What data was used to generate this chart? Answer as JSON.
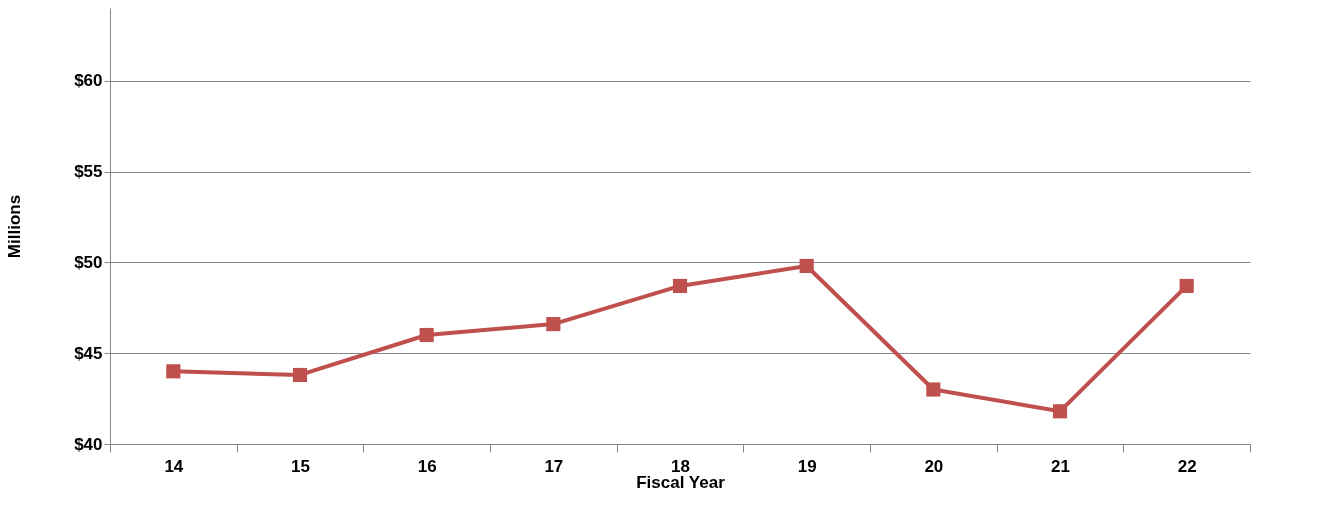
{
  "chart_data": {
    "type": "line",
    "xlabel": "Fiscal Year",
    "ylabel": "Millions",
    "categories": [
      "14",
      "15",
      "16",
      "17",
      "18",
      "19",
      "20",
      "21",
      "22"
    ],
    "series": [
      {
        "color": "#c0504d",
        "values": [
          44.0,
          43.8,
          46.0,
          46.6,
          48.7,
          49.8,
          43.0,
          41.8,
          48.7
        ]
      }
    ],
    "ylim": [
      40,
      64
    ],
    "yticks": [
      {
        "value": 40,
        "label": "$40"
      },
      {
        "value": 45,
        "label": "$45"
      },
      {
        "value": 50,
        "label": "$50"
      },
      {
        "value": 55,
        "label": "$55"
      },
      {
        "value": 60,
        "label": "$60"
      }
    ],
    "grid": "y",
    "legend": false,
    "marker": "square",
    "line_style": "solid"
  }
}
